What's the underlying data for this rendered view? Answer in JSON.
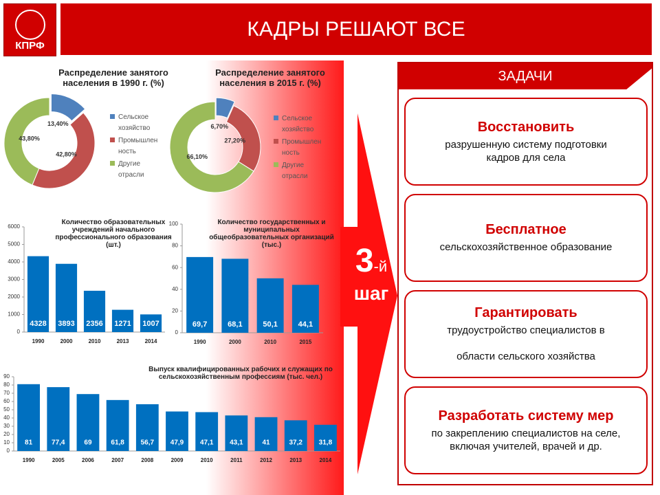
{
  "header": {
    "logo": "КПРФ",
    "title": "КАДРЫ РЕШАЮТ ВСЕ"
  },
  "chart_data": [
    {
      "type": "donut",
      "title": "Распределение занятого населения в 1990 г. (%)",
      "categories": [
        "Сельское\nхозяйство",
        "Промышлен\nность",
        "Другие\nотрасли"
      ],
      "values": [
        13.4,
        42.8,
        43.8
      ],
      "value_labels": [
        "13,40%",
        "42,80%",
        "43,80%"
      ],
      "colors": [
        "#4f81bd",
        "#c0504d",
        "#9bbb59"
      ]
    },
    {
      "type": "donut",
      "title": "Распределение занятого населения в 2015 г. (%)",
      "categories": [
        "Сельское\nхозяйство",
        "Промышлен\nность",
        "Другие\nотрасли"
      ],
      "values": [
        6.7,
        27.2,
        66.1
      ],
      "value_labels": [
        "6,70%",
        "27,20%",
        "66,10%"
      ],
      "colors": [
        "#4f81bd",
        "#c0504d",
        "#9bbb59"
      ]
    },
    {
      "type": "bar",
      "title": "Количество образовательных учреждений начального профессионального образования (шт.)",
      "categories": [
        "1990",
        "2000",
        "2010",
        "2013",
        "2014"
      ],
      "values": [
        4328,
        3893,
        2356,
        1271,
        1007
      ],
      "color": "#0070c0",
      "ylim": [
        0,
        6000
      ],
      "yticks": [
        0,
        1000,
        2000,
        3000,
        4000,
        5000,
        6000
      ]
    },
    {
      "type": "bar",
      "title": "Количество государственных и муниципальных общеобразовательных организаций (тыс.)",
      "categories": [
        "1990",
        "2000",
        "2010",
        "2015"
      ],
      "values": [
        69.7,
        68.1,
        50.1,
        44.1
      ],
      "value_labels": [
        "69,7",
        "68,1",
        "50,1",
        "44,1"
      ],
      "color": "#0070c0",
      "ylim": [
        0,
        100
      ],
      "yticks": [
        0,
        20,
        40,
        60,
        80,
        100
      ]
    },
    {
      "type": "bar",
      "title": "Выпуск квалифицированных рабочих и служащих по сельскохозяйственным профессиям (тыс. чел.)",
      "categories": [
        "1990",
        "2005",
        "2006",
        "2007",
        "2008",
        "2009",
        "2010",
        "2011",
        "2012",
        "2013",
        "2014"
      ],
      "values": [
        81,
        77.4,
        69,
        61.8,
        56.7,
        47.9,
        47.1,
        43.1,
        41,
        37.2,
        31.8
      ],
      "value_labels": [
        "81",
        "77,4",
        "69",
        "61,8",
        "56,7",
        "47,9",
        "47,1",
        "43,1",
        "41",
        "37,2",
        "31,8"
      ],
      "color": "#0070c0",
      "ylim": [
        0,
        90
      ],
      "yticks": [
        0,
        10,
        20,
        30,
        40,
        50,
        60,
        70,
        80,
        90
      ]
    }
  ],
  "step": {
    "number": "3",
    "suffix": "-й",
    "word": "шаг"
  },
  "tasks": {
    "title": "ЗАДАЧИ",
    "items": [
      {
        "heading": "Восстановить",
        "text": "разрушенную систему подготовки\nкадров для села"
      },
      {
        "heading": "Бесплатное",
        "text": "сельскохозяйственное образование"
      },
      {
        "heading": "Гарантировать",
        "text": "трудоустройство специалистов в\n\nобласти сельского хозяйства"
      },
      {
        "heading": "Разработать систему мер",
        "text": "по закреплению специалистов на селе,\nвключая учителей, врачей и др."
      }
    ]
  }
}
